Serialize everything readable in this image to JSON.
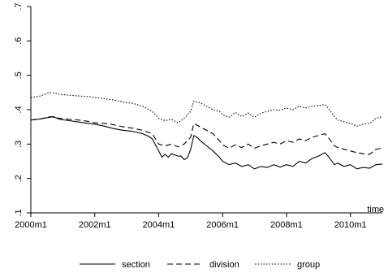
{
  "chart_data": {
    "type": "line",
    "x_label": "time",
    "y_range": [
      0.1,
      0.7
    ],
    "y_ticks": [
      0.1,
      0.2,
      0.3,
      0.4,
      0.5,
      0.6,
      0.7
    ],
    "y_tick_labels": [
      ".1",
      ".2",
      ".3",
      ".4",
      ".5",
      ".6",
      ".7"
    ],
    "x_range": [
      2000.0,
      2011.0
    ],
    "x_ticks": [
      2000,
      2002,
      2004,
      2006,
      2008,
      2010
    ],
    "x_tick_labels": [
      "2000m1",
      "2002m1",
      "2004m1",
      "2006m1",
      "2008m1",
      "2010m1"
    ],
    "grid": false,
    "legend_position": "bottom",
    "series": [
      {
        "name": "section",
        "style": "solid",
        "x": [
          2000.0,
          2000.2,
          2000.4,
          2000.6,
          2000.7,
          2000.9,
          2001.2,
          2001.5,
          2001.8,
          2002.0,
          2002.3,
          2002.6,
          2002.9,
          2003.1,
          2003.3,
          2003.5,
          2003.7,
          2003.8,
          2004.0,
          2004.1,
          2004.2,
          2004.3,
          2004.4,
          2004.6,
          2004.7,
          2004.8,
          2004.9,
          2005.0,
          2005.1,
          2005.2,
          2005.3,
          2005.5,
          2005.7,
          2005.9,
          2006.0,
          2006.2,
          2006.4,
          2006.6,
          2006.8,
          2007.0,
          2007.2,
          2007.4,
          2007.6,
          2007.8,
          2008.0,
          2008.2,
          2008.4,
          2008.6,
          2008.8,
          2009.0,
          2009.2,
          2009.3,
          2009.5,
          2009.6,
          2009.8,
          2010.0,
          2010.2,
          2010.4,
          2010.6,
          2010.8,
          2011.0
        ],
        "y": [
          0.37,
          0.372,
          0.375,
          0.378,
          0.38,
          0.372,
          0.368,
          0.364,
          0.36,
          0.358,
          0.352,
          0.345,
          0.34,
          0.338,
          0.335,
          0.33,
          0.322,
          0.315,
          0.28,
          0.262,
          0.27,
          0.262,
          0.272,
          0.265,
          0.265,
          0.255,
          0.26,
          0.285,
          0.325,
          0.32,
          0.31,
          0.295,
          0.28,
          0.262,
          0.25,
          0.24,
          0.245,
          0.235,
          0.24,
          0.228,
          0.235,
          0.232,
          0.24,
          0.233,
          0.24,
          0.235,
          0.25,
          0.245,
          0.258,
          0.265,
          0.275,
          0.265,
          0.24,
          0.245,
          0.235,
          0.24,
          0.228,
          0.232,
          0.23,
          0.24,
          0.242
        ]
      },
      {
        "name": "division",
        "style": "dash",
        "x": [
          2000.0,
          2000.3,
          2000.6,
          2000.9,
          2001.2,
          2001.5,
          2001.8,
          2002.0,
          2002.3,
          2002.6,
          2002.9,
          2003.2,
          2003.5,
          2003.8,
          2004.0,
          2004.2,
          2004.4,
          2004.6,
          2004.8,
          2005.0,
          2005.1,
          2005.3,
          2005.5,
          2005.7,
          2005.9,
          2006.0,
          2006.2,
          2006.4,
          2006.6,
          2006.8,
          2007.0,
          2007.2,
          2007.4,
          2007.6,
          2007.8,
          2008.0,
          2008.2,
          2008.4,
          2008.6,
          2008.8,
          2009.0,
          2009.2,
          2009.3,
          2009.5,
          2009.6,
          2009.8,
          2010.0,
          2010.2,
          2010.4,
          2010.6,
          2010.8,
          2011.0
        ],
        "y": [
          0.37,
          0.373,
          0.38,
          0.375,
          0.372,
          0.37,
          0.366,
          0.362,
          0.36,
          0.356,
          0.35,
          0.346,
          0.34,
          0.33,
          0.3,
          0.295,
          0.3,
          0.292,
          0.3,
          0.32,
          0.36,
          0.35,
          0.34,
          0.33,
          0.31,
          0.298,
          0.288,
          0.298,
          0.29,
          0.3,
          0.288,
          0.295,
          0.3,
          0.305,
          0.3,
          0.31,
          0.305,
          0.315,
          0.31,
          0.32,
          0.325,
          0.33,
          0.32,
          0.295,
          0.29,
          0.285,
          0.28,
          0.275,
          0.272,
          0.27,
          0.285,
          0.288
        ]
      },
      {
        "name": "group",
        "style": "dot",
        "x": [
          2000.0,
          2000.3,
          2000.6,
          2000.9,
          2001.2,
          2001.5,
          2001.8,
          2002.0,
          2002.3,
          2002.6,
          2002.9,
          2003.2,
          2003.5,
          2003.8,
          2004.0,
          2004.2,
          2004.4,
          2004.6,
          2004.8,
          2005.0,
          2005.1,
          2005.3,
          2005.5,
          2005.7,
          2005.9,
          2006.0,
          2006.2,
          2006.4,
          2006.6,
          2006.8,
          2007.0,
          2007.2,
          2007.4,
          2007.6,
          2007.8,
          2008.0,
          2008.2,
          2008.4,
          2008.6,
          2008.8,
          2009.0,
          2009.2,
          2009.3,
          2009.5,
          2009.6,
          2009.8,
          2010.0,
          2010.2,
          2010.4,
          2010.6,
          2010.8,
          2011.0
        ],
        "y": [
          0.435,
          0.44,
          0.45,
          0.445,
          0.442,
          0.44,
          0.438,
          0.436,
          0.432,
          0.428,
          0.422,
          0.418,
          0.41,
          0.395,
          0.375,
          0.368,
          0.372,
          0.362,
          0.375,
          0.395,
          0.425,
          0.42,
          0.41,
          0.4,
          0.395,
          0.385,
          0.378,
          0.392,
          0.38,
          0.39,
          0.378,
          0.39,
          0.395,
          0.4,
          0.398,
          0.405,
          0.4,
          0.41,
          0.405,
          0.41,
          0.412,
          0.415,
          0.405,
          0.38,
          0.37,
          0.365,
          0.36,
          0.352,
          0.358,
          0.36,
          0.375,
          0.38
        ]
      }
    ]
  }
}
